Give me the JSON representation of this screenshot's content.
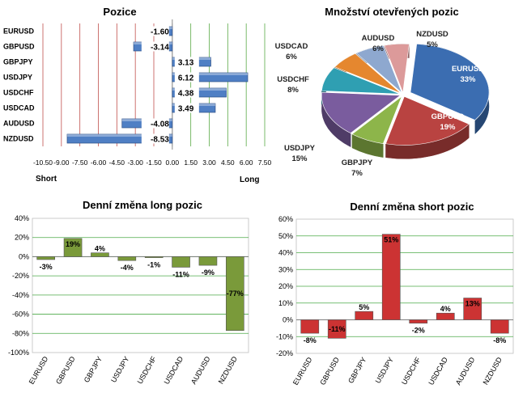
{
  "chart_data": [
    {
      "type": "bar",
      "orientation": "horizontal",
      "title": "Pozice",
      "categories": [
        "EURUSD",
        "GBPUSD",
        "GBPJPY",
        "USDJPY",
        "USDCHF",
        "USDCAD",
        "AUDUSD",
        "NZDUSD"
      ],
      "values": [
        -1.6,
        -3.14,
        3.13,
        6.12,
        4.38,
        3.49,
        -4.08,
        -8.53
      ],
      "value_labels": [
        "-1.60",
        "-3.14",
        "3.13",
        "6.12",
        "4.38",
        "3.49",
        "-4.08",
        "-8.53"
      ],
      "xlim": [
        -10.5,
        7.5
      ],
      "xticks": [
        -10.5,
        -9,
        -7.5,
        -6,
        -4.5,
        -3,
        -1.5,
        0,
        1.5,
        3,
        4.5,
        6,
        7.5
      ],
      "xtick_labels": [
        "-10.50",
        "-9.00",
        "-7.50",
        "-6.00",
        "-4.50",
        "-3.00",
        "-1.50",
        "0.00",
        "1.50",
        "3.00",
        "4.50",
        "6.00",
        "7.50"
      ],
      "left_label": "Short",
      "right_label": "Long",
      "colors": {
        "bar": "#4f7fc4",
        "short_grid": "#c0504d",
        "long_grid": "#5aaa46"
      }
    },
    {
      "type": "pie",
      "title": "Množství otevřených pozic",
      "slices": [
        {
          "label": "EURUSD",
          "value": 33,
          "pct": "33%",
          "color": "#3b6db1"
        },
        {
          "label": "GBPUSD",
          "value": 19,
          "pct": "19%",
          "color": "#b94341"
        },
        {
          "label": "GBPJPY",
          "value": 7,
          "pct": "7%",
          "color": "#8db54a"
        },
        {
          "label": "USDJPY",
          "value": 15,
          "pct": "15%",
          "color": "#7a5c9e"
        },
        {
          "label": "USDCHF",
          "value": 8,
          "pct": "8%",
          "color": "#2f9fb2"
        },
        {
          "label": "USDCAD",
          "value": 6,
          "pct": "6%",
          "color": "#e5872f"
        },
        {
          "label": "AUDUSD",
          "value": 6,
          "pct": "6%",
          "color": "#8ea8cf"
        },
        {
          "label": "NZDUSD",
          "value": 5,
          "pct": "5%",
          "color": "#dc9a9a"
        }
      ]
    },
    {
      "type": "bar",
      "title": "Denní změna long pozic",
      "categories": [
        "EURUSD",
        "GBPUSD",
        "GBPJPY",
        "USDJPY",
        "USDCHF",
        "USDCAD",
        "AUDUSD",
        "NZDUSD"
      ],
      "values": [
        -3,
        19,
        4,
        -4,
        -1,
        -11,
        -9,
        -77
      ],
      "value_labels": [
        "-3%",
        "19%",
        "4%",
        "-4%",
        "-1%",
        "-11%",
        "-9%",
        "-77%"
      ],
      "ylim": [
        -100,
        40
      ],
      "yticks": [
        -100,
        -80,
        -60,
        -40,
        -20,
        0,
        20,
        40
      ],
      "ytick_labels": [
        "-100%",
        "-80%",
        "-60%",
        "-40%",
        "-20%",
        "0%",
        "20%",
        "40%"
      ],
      "grid": true,
      "colors": {
        "bar": "#7a9a3a",
        "grid": "#4caa48"
      }
    },
    {
      "type": "bar",
      "title": "Denní změna short pozic",
      "categories": [
        "EURUSD",
        "GBPUSD",
        "GBPJPY",
        "USDJPY",
        "USDCHF",
        "USDCAD",
        "AUDUSD",
        "NZDUSD"
      ],
      "values": [
        -8,
        -11,
        5,
        51,
        -2,
        4,
        13,
        -8
      ],
      "value_labels": [
        "-8%",
        "-11%",
        "5%",
        "51%",
        "-2%",
        "4%",
        "13%",
        "-8%"
      ],
      "ylim": [
        -20,
        60
      ],
      "yticks": [
        -20,
        -10,
        0,
        10,
        20,
        30,
        40,
        50,
        60
      ],
      "ytick_labels": [
        "-20%",
        "-10%",
        "0%",
        "10%",
        "20%",
        "30%",
        "40%",
        "50%",
        "60%"
      ],
      "grid": true,
      "colors": {
        "bar": "#cc3333",
        "grid": "#4caa48"
      }
    }
  ]
}
